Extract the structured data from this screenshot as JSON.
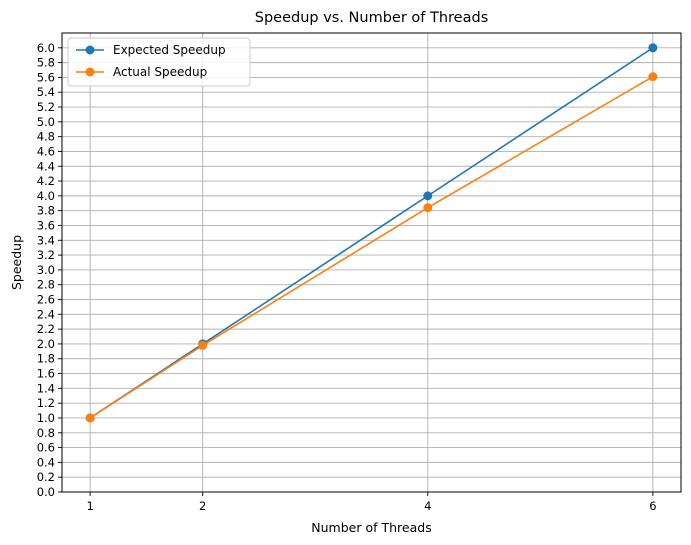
{
  "chart_data": {
    "type": "line",
    "title": "Speedup vs. Number of Threads",
    "xlabel": "Number of Threads",
    "ylabel": "Speedup",
    "x": [
      1,
      2,
      4,
      6
    ],
    "x_ticks": [
      "1",
      "2",
      "4",
      "6"
    ],
    "ylim": [
      0,
      6.2
    ],
    "y_ticks": [
      "0.0",
      "0.2",
      "0.4",
      "0.6",
      "0.8",
      "1.0",
      "1.2",
      "1.4",
      "1.6",
      "1.8",
      "2.0",
      "2.2",
      "2.4",
      "2.6",
      "2.8",
      "3.0",
      "3.2",
      "3.4",
      "3.6",
      "3.8",
      "4.0",
      "4.2",
      "4.4",
      "4.6",
      "4.8",
      "5.0",
      "5.2",
      "5.4",
      "5.6",
      "5.8",
      "6.0"
    ],
    "grid": true,
    "legend_position": "top-left",
    "series": [
      {
        "name": "Expected Speedup",
        "color": "#1f77b4",
        "values": [
          1.0,
          2.0,
          4.0,
          6.0
        ]
      },
      {
        "name": "Actual Speedup",
        "color": "#ff7f0e",
        "values": [
          1.0,
          1.98,
          3.84,
          5.61
        ]
      }
    ]
  }
}
